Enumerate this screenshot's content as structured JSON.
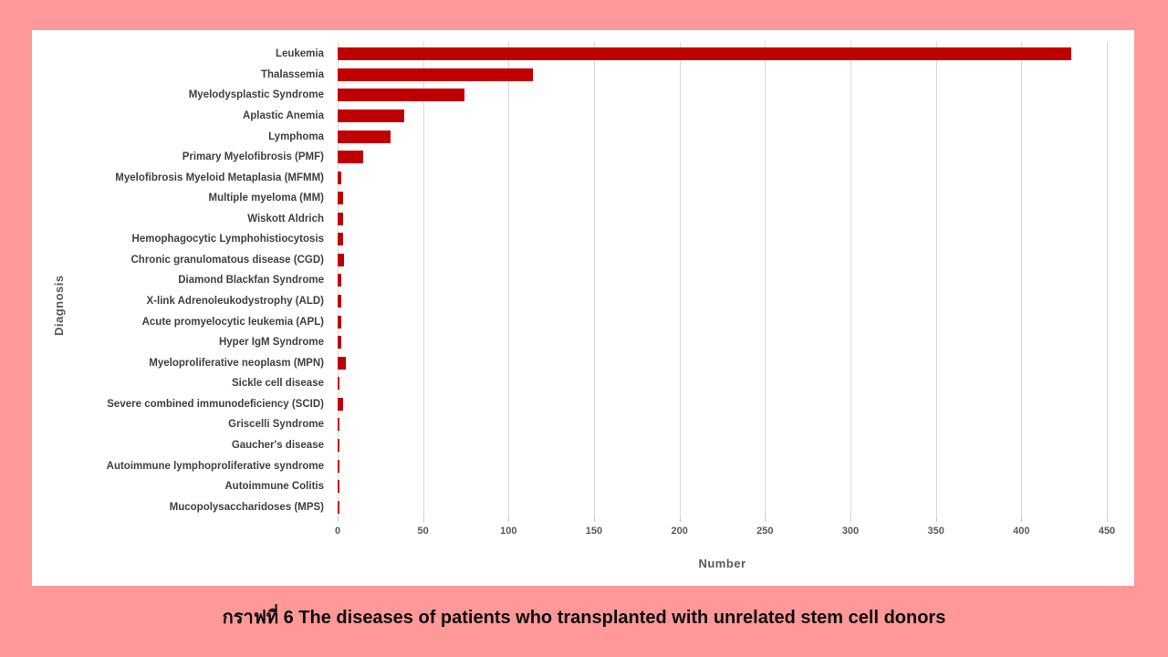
{
  "caption": "กราฟที่ 6 The diseases of patients who transplanted with unrelated stem cell donors",
  "chart_data": {
    "type": "bar",
    "orientation": "horizontal",
    "xlabel": "Number",
    "ylabel": "Diagnosis",
    "xlim": [
      0,
      450
    ],
    "x_ticks": [
      0,
      50,
      100,
      150,
      200,
      250,
      300,
      350,
      400,
      450
    ],
    "grid": true,
    "legend": false,
    "bar_color": "#c00000",
    "page_background": "#ff9898",
    "plot_background": "#ffffff",
    "categories": [
      "Leukemia",
      "Thalassemia",
      "Myelodysplastic Syndrome",
      "Aplastic Anemia",
      "Lymphoma",
      "Primary Myelofibrosis (PMF)",
      "Myelofibrosis Myeloid Metaplasia (MFMM)",
      "Multiple myeloma (MM)",
      "Wiskott Aldrich",
      "Hemophagocytic Lymphohistiocytosis",
      "Chronic granulomatous disease (CGD)",
      "Diamond Blackfan Syndrome",
      "X-link Adrenoleukodystrophy  (ALD)",
      "Acute promyelocytic leukemia (APL)",
      "Hyper IgM Syndrome",
      "Myeloproliferative neoplasm (MPN)",
      "Sickle cell disease",
      "Severe combined immunodeficiency (SCID)",
      "Griscelli Syndrome",
      "Gaucher's disease",
      "Autoimmune lymphoproliferative syndrome",
      "Autoimmune Colitis",
      "Mucopolysaccharidoses (MPS)"
    ],
    "values": [
      429,
      114,
      74,
      39,
      31,
      15,
      2,
      3,
      3,
      3,
      4,
      2,
      2,
      2,
      2,
      5,
      1,
      3,
      1,
      1,
      1,
      1,
      1
    ]
  }
}
